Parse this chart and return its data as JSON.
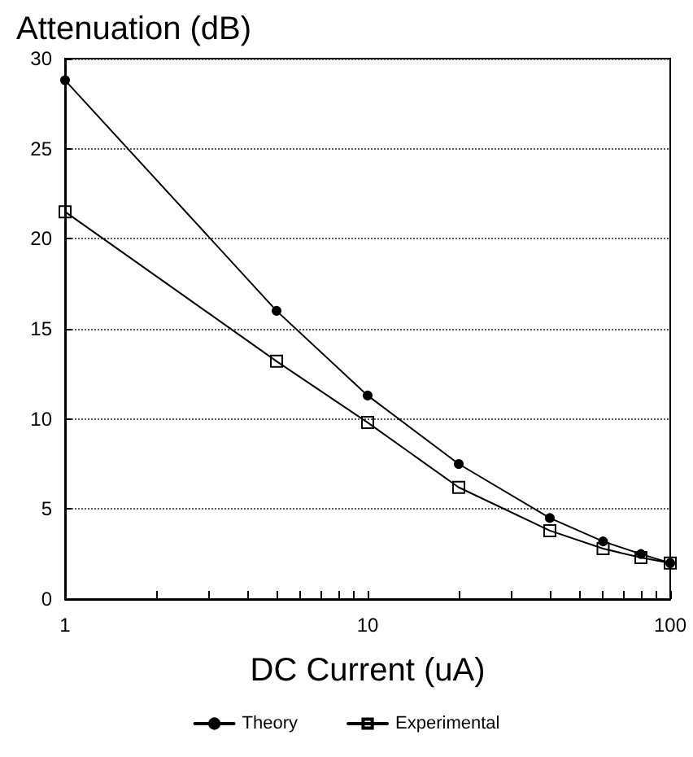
{
  "chart_data": {
    "type": "line",
    "ylabel": "Attenuation (dB)",
    "xlabel": "DC Current (uA)",
    "log": "x",
    "xlim": [
      1,
      100
    ],
    "xticks": [
      1,
      {
        "value": 2,
        "label": null
      },
      {
        "value": 3,
        "label": null
      },
      {
        "value": 4,
        "label": null
      },
      {
        "value": 5,
        "label": null
      },
      {
        "value": 6,
        "label": null
      },
      {
        "value": 7,
        "label": null
      },
      {
        "value": 8,
        "label": null
      },
      {
        "value": 9,
        "label": null
      },
      10,
      {
        "value": 20,
        "label": null
      },
      {
        "value": 30,
        "label": null
      },
      {
        "value": 40,
        "label": null
      },
      {
        "value": 50,
        "label": null
      },
      {
        "value": 60,
        "label": null
      },
      {
        "value": 70,
        "label": null
      },
      {
        "value": 80,
        "label": null
      },
      {
        "value": 90,
        "label": null
      },
      100
    ],
    "ylim": [
      0,
      30
    ],
    "yticks": [
      0,
      5,
      10,
      15,
      20,
      25,
      30
    ],
    "grid": "y",
    "legend": "bottom",
    "x": [
      1,
      5,
      10,
      20,
      40,
      60,
      80,
      100
    ],
    "series": [
      {
        "name": "Theory",
        "color": "#000000",
        "marker": "circle",
        "values": [
          28.8,
          16.0,
          11.3,
          7.5,
          4.5,
          3.2,
          2.5,
          2.0
        ]
      },
      {
        "name": "Experimental",
        "color": "#000000",
        "marker": "square",
        "values": [
          21.5,
          13.2,
          9.8,
          6.2,
          3.8,
          2.8,
          2.3,
          2.0
        ]
      }
    ]
  }
}
